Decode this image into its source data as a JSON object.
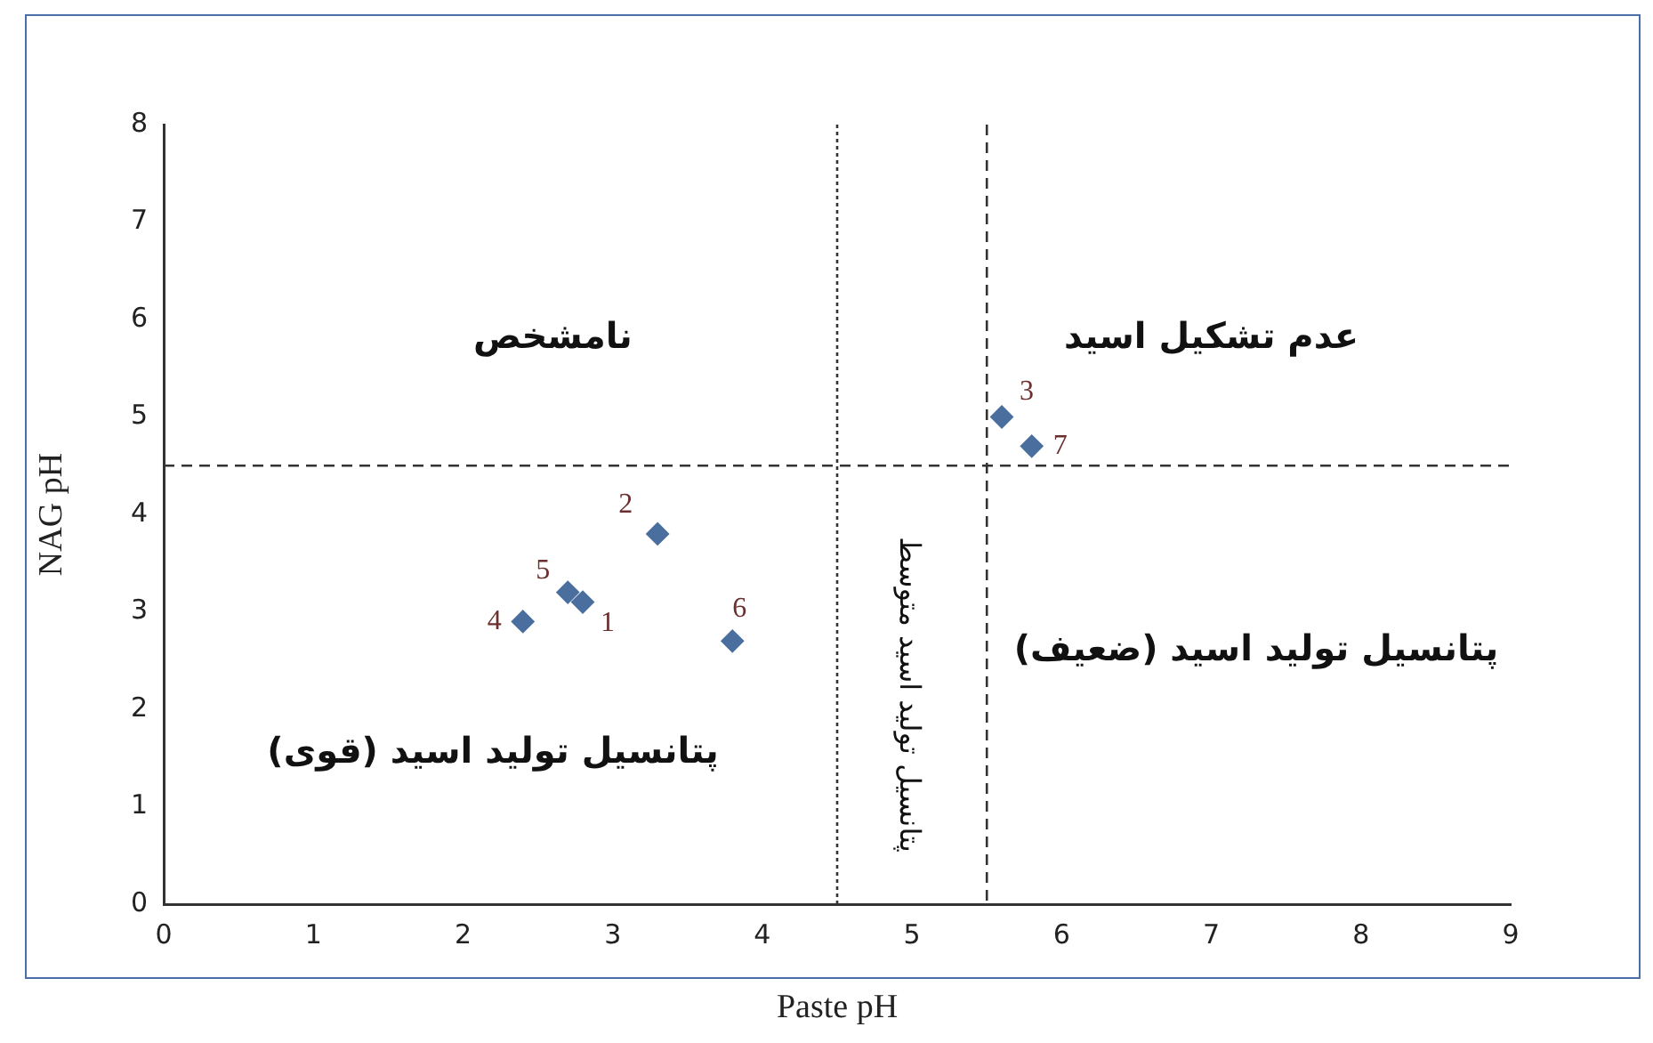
{
  "chart_data": {
    "type": "scatter",
    "xlabel": "Paste pH",
    "ylabel": "NAG pH",
    "x": [
      2.8,
      3.3,
      5.6,
      2.4,
      2.7,
      3.8,
      5.8
    ],
    "series": [
      {
        "color": "#4a6f9e",
        "values": [
          3.1,
          3.8,
          5.0,
          2.9,
          3.2,
          2.7,
          4.7
        ]
      }
    ],
    "xlim": [
      0,
      9
    ],
    "xticks": [
      0,
      1,
      2,
      3,
      4,
      5,
      6,
      7,
      8,
      9
    ],
    "ylim": [
      0,
      8
    ],
    "yticks": [
      0,
      1,
      2,
      3,
      4,
      5,
      6,
      7,
      8
    ],
    "grid": false,
    "legend": false,
    "marker": "diamond",
    "ref_lines": [
      {
        "axis": "y",
        "value": 4.5,
        "color": "#333333",
        "line_style": "dashed"
      },
      {
        "axis": "x",
        "value": 4.5,
        "color": "#333333",
        "line_style": "dotted"
      },
      {
        "axis": "x",
        "value": 5.5,
        "color": "#333333",
        "line_style": "dashed"
      }
    ],
    "annotations": [
      "نامشخص",
      "عدم تشکیل اسید",
      "پتانسیل تولید اسید (قوی)",
      "پتانسیل تولید اسید متوسط",
      "پتانسیل تولید اسید (ضعیف)",
      {
        "text": "1",
        "x": 2.8,
        "y": 3.1
      },
      {
        "text": "2",
        "x": 3.3,
        "y": 3.8
      },
      {
        "text": "3",
        "x": 5.6,
        "y": 5.0
      },
      {
        "text": "4",
        "x": 2.4,
        "y": 2.9
      },
      {
        "text": "5",
        "x": 2.7,
        "y": 3.2
      },
      {
        "text": "6",
        "x": 3.8,
        "y": 2.7
      },
      {
        "text": "7",
        "x": 5.8,
        "y": 4.7
      }
    ]
  }
}
